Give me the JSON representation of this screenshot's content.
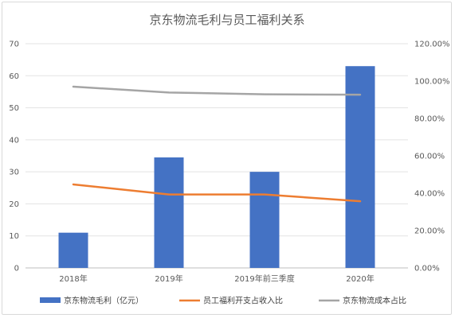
{
  "chart_data": {
    "type": "bar",
    "title": "京东物流毛利与员工福利关系",
    "categories": [
      "2018年",
      "2019年",
      "2019年前三季度",
      "2020年"
    ],
    "series": [
      {
        "name": "京东物流毛利（亿元）",
        "type": "bar",
        "axis": "left",
        "color": "#4472C4",
        "values": [
          11,
          34.5,
          30,
          63
        ]
      },
      {
        "name": "员工福利开支占收入比",
        "type": "line",
        "axis": "right",
        "color": "#ED7D31",
        "values": [
          0.447,
          0.393,
          0.393,
          0.357
        ]
      },
      {
        "name": "京东物流成本占比",
        "type": "line",
        "axis": "right",
        "color": "#A5A5A5",
        "values": [
          0.97,
          0.939,
          0.929,
          0.927
        ]
      }
    ],
    "y_left": {
      "ylim": [
        0,
        70
      ],
      "ticks": [
        "0",
        "10",
        "20",
        "30",
        "40",
        "50",
        "60",
        "70"
      ]
    },
    "y_right": {
      "ylim": [
        0,
        1.2
      ],
      "ticks": [
        "0.00%",
        "20.00%",
        "40.00%",
        "60.00%",
        "80.00%",
        "100.00%",
        "120.00%"
      ]
    },
    "grid": true,
    "legend_position": "bottom"
  }
}
